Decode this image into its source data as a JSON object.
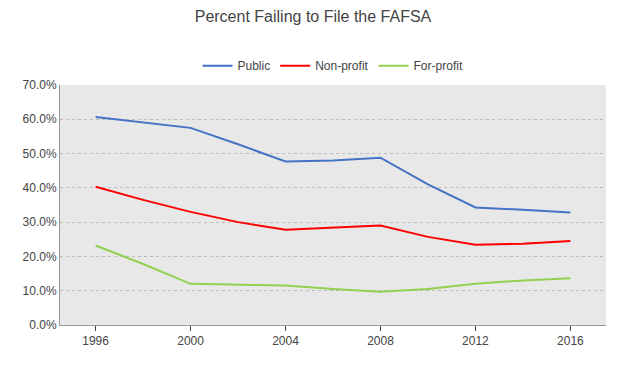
{
  "chart_data": {
    "type": "line",
    "title": "Percent Failing to File the FAFSA",
    "x": [
      1996,
      1998,
      2000,
      2002,
      2004,
      2006,
      2008,
      2010,
      2012,
      2014,
      2016
    ],
    "series": [
      {
        "name": "Public",
        "color": "#4472C4",
        "values": [
          0.607,
          0.592,
          0.575,
          0.527,
          0.477,
          0.48,
          0.488,
          0.41,
          0.343,
          0.336,
          0.328
        ]
      },
      {
        "name": "Non-profit",
        "color": "#FF0000",
        "values": [
          0.403,
          0.365,
          0.33,
          0.3,
          0.278,
          0.283,
          0.29,
          0.257,
          0.234,
          0.237,
          0.245
        ]
      },
      {
        "name": "For-profit",
        "color": "#92D050",
        "values": [
          0.232,
          0.178,
          0.12,
          0.117,
          0.115,
          0.105,
          0.097,
          0.105,
          0.12,
          0.13,
          0.136
        ]
      }
    ],
    "xlim": [
      1994.5,
      2017.5
    ],
    "xticks": [
      1996,
      2000,
      2004,
      2008,
      2012,
      2016
    ],
    "ylim": [
      0.0,
      0.7
    ],
    "yticks": [
      {
        "value": 0.0,
        "label": "0.0%"
      },
      {
        "value": 0.1,
        "label": "10.0%"
      },
      {
        "value": 0.2,
        "label": "20.0%"
      },
      {
        "value": 0.3,
        "label": "30.0%"
      },
      {
        "value": 0.4,
        "label": "40.0%"
      },
      {
        "value": 0.5,
        "label": "50.0%"
      },
      {
        "value": 0.6,
        "label": "60.0%"
      },
      {
        "value": 0.7,
        "label": "70.0%"
      }
    ],
    "grid": true,
    "legend": "top"
  }
}
